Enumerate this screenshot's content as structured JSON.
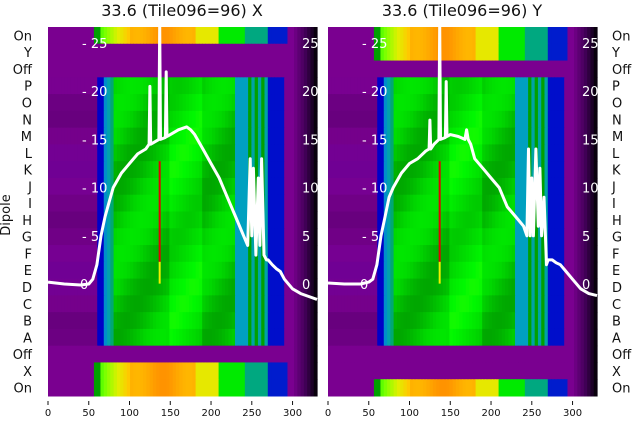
{
  "ylabel": "Dipole",
  "row_labels": [
    "On",
    "Y",
    "Off",
    "P",
    "O",
    "N",
    "M",
    "L",
    "K",
    "J",
    "I",
    "H",
    "G",
    "F",
    "E",
    "D",
    "C",
    "B",
    "A",
    "Off",
    "X",
    "On"
  ],
  "chart_data": [
    {
      "type": "heatmap",
      "title": "33.6 (Tile096=96) X",
      "xlim": [
        0,
        330
      ],
      "xticks": [
        "0",
        "50",
        "100",
        "150",
        "200",
        "250",
        "300"
      ],
      "yticks": [
        "0",
        "5",
        "10",
        "15",
        "20",
        "25"
      ],
      "ylim_line": [
        -2,
        26.5
      ],
      "active_rows": [
        "On",
        "X"
      ],
      "line": {
        "x": [
          0,
          20,
          40,
          50,
          55,
          60,
          65,
          70,
          75,
          80,
          90,
          100,
          110,
          120,
          124,
          125,
          126,
          130,
          136,
          137,
          138,
          144,
          145,
          146,
          150,
          160,
          170,
          175,
          180,
          190,
          200,
          210,
          220,
          230,
          240,
          245,
          248,
          250,
          252,
          255,
          258,
          260,
          262,
          265,
          268,
          270,
          275,
          280,
          285,
          290,
          300,
          310,
          320,
          330
        ],
        "y": [
          0.2,
          0,
          -0.1,
          0,
          0.5,
          2,
          5,
          7,
          8.5,
          10,
          11.5,
          12.5,
          13.5,
          14,
          14.5,
          20.5,
          14.5,
          14.7,
          15,
          27,
          15,
          15.2,
          22,
          15.3,
          15.5,
          16,
          16.3,
          16,
          15.5,
          14,
          12.5,
          11,
          9,
          7,
          5,
          4,
          13,
          5,
          12,
          3,
          11,
          4,
          13,
          3,
          2.5,
          2.5,
          2,
          1.6,
          1.3,
          0.5,
          -0.5,
          -1,
          -1.3,
          -1.6
        ]
      }
    },
    {
      "type": "heatmap",
      "title": "33.6 (Tile096=96) Y",
      "xlim": [
        0,
        330
      ],
      "xticks": [
        "0",
        "50",
        "100",
        "150",
        "200",
        "250",
        "300"
      ],
      "yticks": [
        "0",
        "5",
        "10",
        "15",
        "20",
        "25"
      ],
      "ylim_line": [
        -2,
        26.5
      ],
      "active_rows": [
        "On",
        "Y"
      ],
      "line": {
        "x": [
          0,
          20,
          40,
          50,
          55,
          60,
          65,
          70,
          75,
          80,
          90,
          100,
          110,
          120,
          124,
          125,
          126,
          130,
          136,
          137,
          138,
          144,
          145,
          146,
          150,
          160,
          168,
          170,
          172,
          175,
          180,
          190,
          200,
          210,
          220,
          230,
          240,
          244,
          246,
          248,
          250,
          252,
          255,
          258,
          260,
          262,
          265,
          268,
          270,
          275,
          280,
          285,
          290,
          300,
          310,
          320,
          330
        ],
        "y": [
          0.1,
          0,
          0,
          0.2,
          0.5,
          2,
          5,
          7,
          9,
          10,
          11.5,
          12.5,
          13,
          13.8,
          14,
          17,
          14,
          14.5,
          15,
          27,
          15,
          15.2,
          21,
          15.3,
          15.5,
          15.3,
          15,
          16,
          15,
          14.5,
          13,
          12,
          11,
          10,
          8,
          7,
          6,
          5,
          14,
          5,
          11,
          5,
          14,
          6,
          12,
          5,
          9,
          2,
          2.5,
          2.5,
          2.2,
          2,
          1.5,
          0.5,
          -0.5,
          -1,
          -1.2
        ]
      }
    }
  ]
}
